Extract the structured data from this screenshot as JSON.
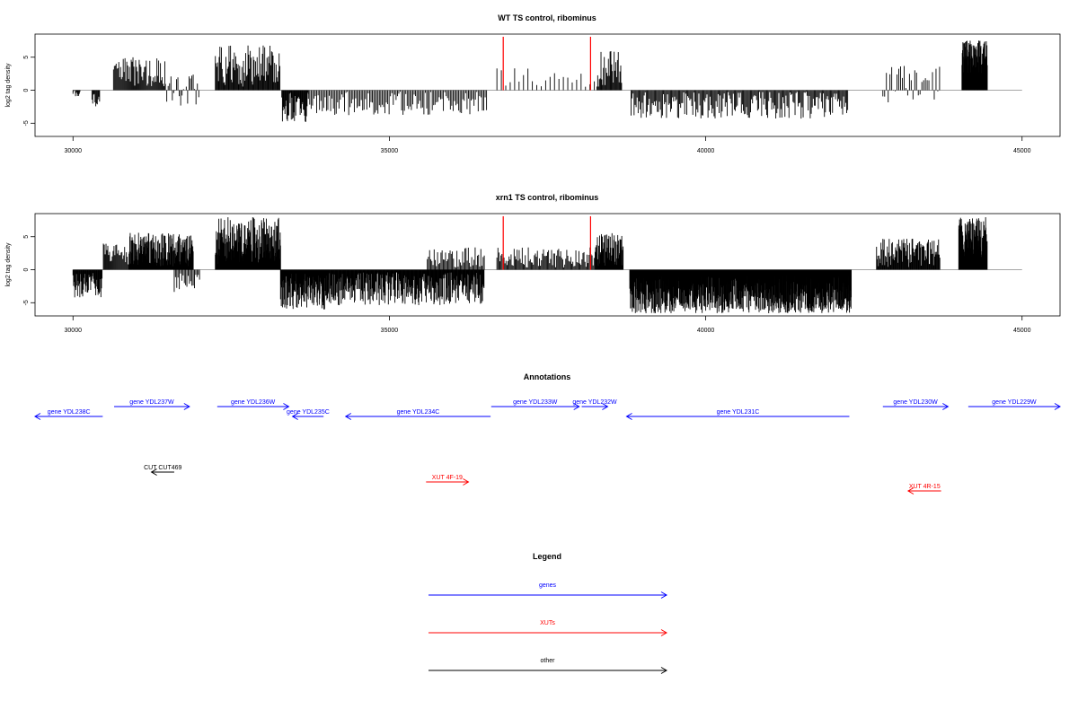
{
  "chart_data": [
    {
      "type": "bar",
      "title": "WT TS control, ribominus",
      "ylabel": "log2 tag density",
      "xlim": [
        29400,
        45600
      ],
      "ylim": [
        -7,
        8.5
      ],
      "xticks": [
        30000,
        35000,
        40000,
        45000
      ],
      "yticks": [
        -5,
        0,
        5
      ],
      "baseline": {
        "from": 30000,
        "to": 45000,
        "color": "#888888"
      },
      "bar_color": "#000000",
      "highlight_color": "#ff0000",
      "highlights": [
        {
          "x": 36800,
          "y": 8.1
        },
        {
          "x": 38180,
          "y": 8.1
        }
      ],
      "segments": [
        {
          "from": 30000,
          "to": 30110,
          "min": -1,
          "max": 0,
          "step": 10,
          "seed": 1
        },
        {
          "from": 30300,
          "to": 30430,
          "min": -2.7,
          "max": -0.3,
          "step": 12,
          "seed": 2
        },
        {
          "from": 30640,
          "to": 31460,
          "min": 0.3,
          "max": 5,
          "step": 14,
          "seed": 3
        },
        {
          "from": 31460,
          "to": 31990,
          "min": -2.5,
          "max": 2.6,
          "step": 22,
          "seed": 4
        },
        {
          "from": 32250,
          "to": 33270,
          "min": 0.3,
          "max": 6.8,
          "step": 12,
          "seed": 5
        },
        {
          "from": 33300,
          "to": 33720,
          "min": -4.8,
          "max": -0.3,
          "step": 10,
          "seed": 6
        },
        {
          "from": 33720,
          "to": 36550,
          "min": -3.8,
          "max": -0.2,
          "step": 22,
          "seed": 7
        },
        {
          "from": 36700,
          "to": 38260,
          "min": 0.2,
          "max": 3.4,
          "step": 70,
          "seed": 8
        },
        {
          "from": 38280,
          "to": 38680,
          "min": 0.3,
          "max": 6.5,
          "step": 13,
          "seed": 9
        },
        {
          "from": 38820,
          "to": 42250,
          "min": -4.3,
          "max": -0.2,
          "step": 16,
          "seed": 10
        },
        {
          "from": 42800,
          "to": 43720,
          "min": -2,
          "max": 3.7,
          "step": 28,
          "seed": 11
        },
        {
          "from": 44050,
          "to": 44450,
          "min": 2.5,
          "max": 7.6,
          "step": 5,
          "seed": 12
        }
      ]
    },
    {
      "type": "bar",
      "title": "xrn1 TS control, ribominus",
      "ylabel": "log2 tag density",
      "xlim": [
        29400,
        45600
      ],
      "ylim": [
        -7,
        8.5
      ],
      "xticks": [
        30000,
        35000,
        40000,
        45000
      ],
      "yticks": [
        -5,
        0,
        5
      ],
      "baseline": {
        "from": 30000,
        "to": 45000,
        "color": "#888888"
      },
      "bar_color": "#000000",
      "highlight_color": "#ff0000",
      "highlights": [
        {
          "x": 36800,
          "y": 8.1
        },
        {
          "x": 38180,
          "y": 8.1
        }
      ],
      "segments": [
        {
          "from": 30000,
          "to": 30460,
          "min": -4.5,
          "max": -0.5,
          "step": 9,
          "seed": 21
        },
        {
          "from": 30480,
          "to": 30880,
          "min": 0.3,
          "max": 4,
          "step": 14,
          "seed": 22
        },
        {
          "from": 30880,
          "to": 31900,
          "min": 0.5,
          "max": 5.6,
          "step": 6,
          "seed": 23
        },
        {
          "from": 31600,
          "to": 32000,
          "min": -3.8,
          "max": -0.5,
          "step": 20,
          "seed": 24
        },
        {
          "from": 32250,
          "to": 33280,
          "min": 0.8,
          "max": 8,
          "step": 5,
          "seed": 25
        },
        {
          "from": 33280,
          "to": 34040,
          "min": -6,
          "max": -0.5,
          "step": 6,
          "seed": 26
        },
        {
          "from": 34040,
          "to": 36500,
          "min": -5.4,
          "max": -0.4,
          "step": 8,
          "seed": 27
        },
        {
          "from": 35600,
          "to": 36500,
          "min": 0.3,
          "max": 3.4,
          "step": 18,
          "seed": 28
        },
        {
          "from": 36700,
          "to": 38260,
          "min": 0.3,
          "max": 3.4,
          "step": 16,
          "seed": 29
        },
        {
          "from": 38260,
          "to": 38700,
          "min": 0.5,
          "max": 5.6,
          "step": 7,
          "seed": 30
        },
        {
          "from": 38800,
          "to": 42300,
          "min": -6.6,
          "max": -0.8,
          "step": 4,
          "seed": 31
        },
        {
          "from": 42700,
          "to": 43700,
          "min": 0.4,
          "max": 4.7,
          "step": 10,
          "seed": 32
        },
        {
          "from": 44000,
          "to": 44450,
          "min": 1.8,
          "max": 8,
          "step": 4,
          "seed": 33
        }
      ]
    }
  ],
  "annotations": {
    "title": "Annotations",
    "xlim": [
      29400,
      45600
    ],
    "genes": [
      {
        "label": "gene YDL238C",
        "from": 29400,
        "to": 30470,
        "dir": "left",
        "row": 2
      },
      {
        "label": "gene YDL237W",
        "from": 30650,
        "to": 31840,
        "dir": "right",
        "row": 1
      },
      {
        "label": "gene YDL236W",
        "from": 32280,
        "to": 33410,
        "dir": "right",
        "row": 1
      },
      {
        "label": "gene YDL235C",
        "from": 33470,
        "to": 33960,
        "dir": "left",
        "row": 2
      },
      {
        "label": "gene YDL234C",
        "from": 34310,
        "to": 36600,
        "dir": "left",
        "row": 2
      },
      {
        "label": "gene YDL233W",
        "from": 36610,
        "to": 38000,
        "dir": "right",
        "row": 1
      },
      {
        "label": "gene YDL232W",
        "from": 38040,
        "to": 38450,
        "dir": "right",
        "row": 1
      },
      {
        "label": "gene YDL231C",
        "from": 38750,
        "to": 42270,
        "dir": "left",
        "row": 2
      },
      {
        "label": "gene YDL230W",
        "from": 42800,
        "to": 43830,
        "dir": "right",
        "row": 1
      },
      {
        "label": "gene YDL229W",
        "from": 44150,
        "to": 45600,
        "dir": "right",
        "row": 1
      }
    ],
    "xuts": [
      {
        "label": "XUT 4F-19",
        "from": 35580,
        "to": 36250,
        "dir": "right",
        "row": 1
      },
      {
        "label": "XUT 4R-15",
        "from": 43200,
        "to": 43720,
        "dir": "left",
        "row": 2
      }
    ],
    "other": [
      {
        "label": "CUT CUT469",
        "from": 31240,
        "to": 31600,
        "dir": "left",
        "row": 1
      }
    ]
  },
  "legend": {
    "title": "Legend",
    "items": [
      {
        "label": "genes",
        "color": "#0000ff"
      },
      {
        "label": "XUTs",
        "color": "#ff0000"
      },
      {
        "label": "other",
        "color": "#000000"
      }
    ]
  },
  "colors": {
    "genes": "#0000ff",
    "xuts": "#ff0000",
    "other": "#000000",
    "axis": "#000000"
  }
}
